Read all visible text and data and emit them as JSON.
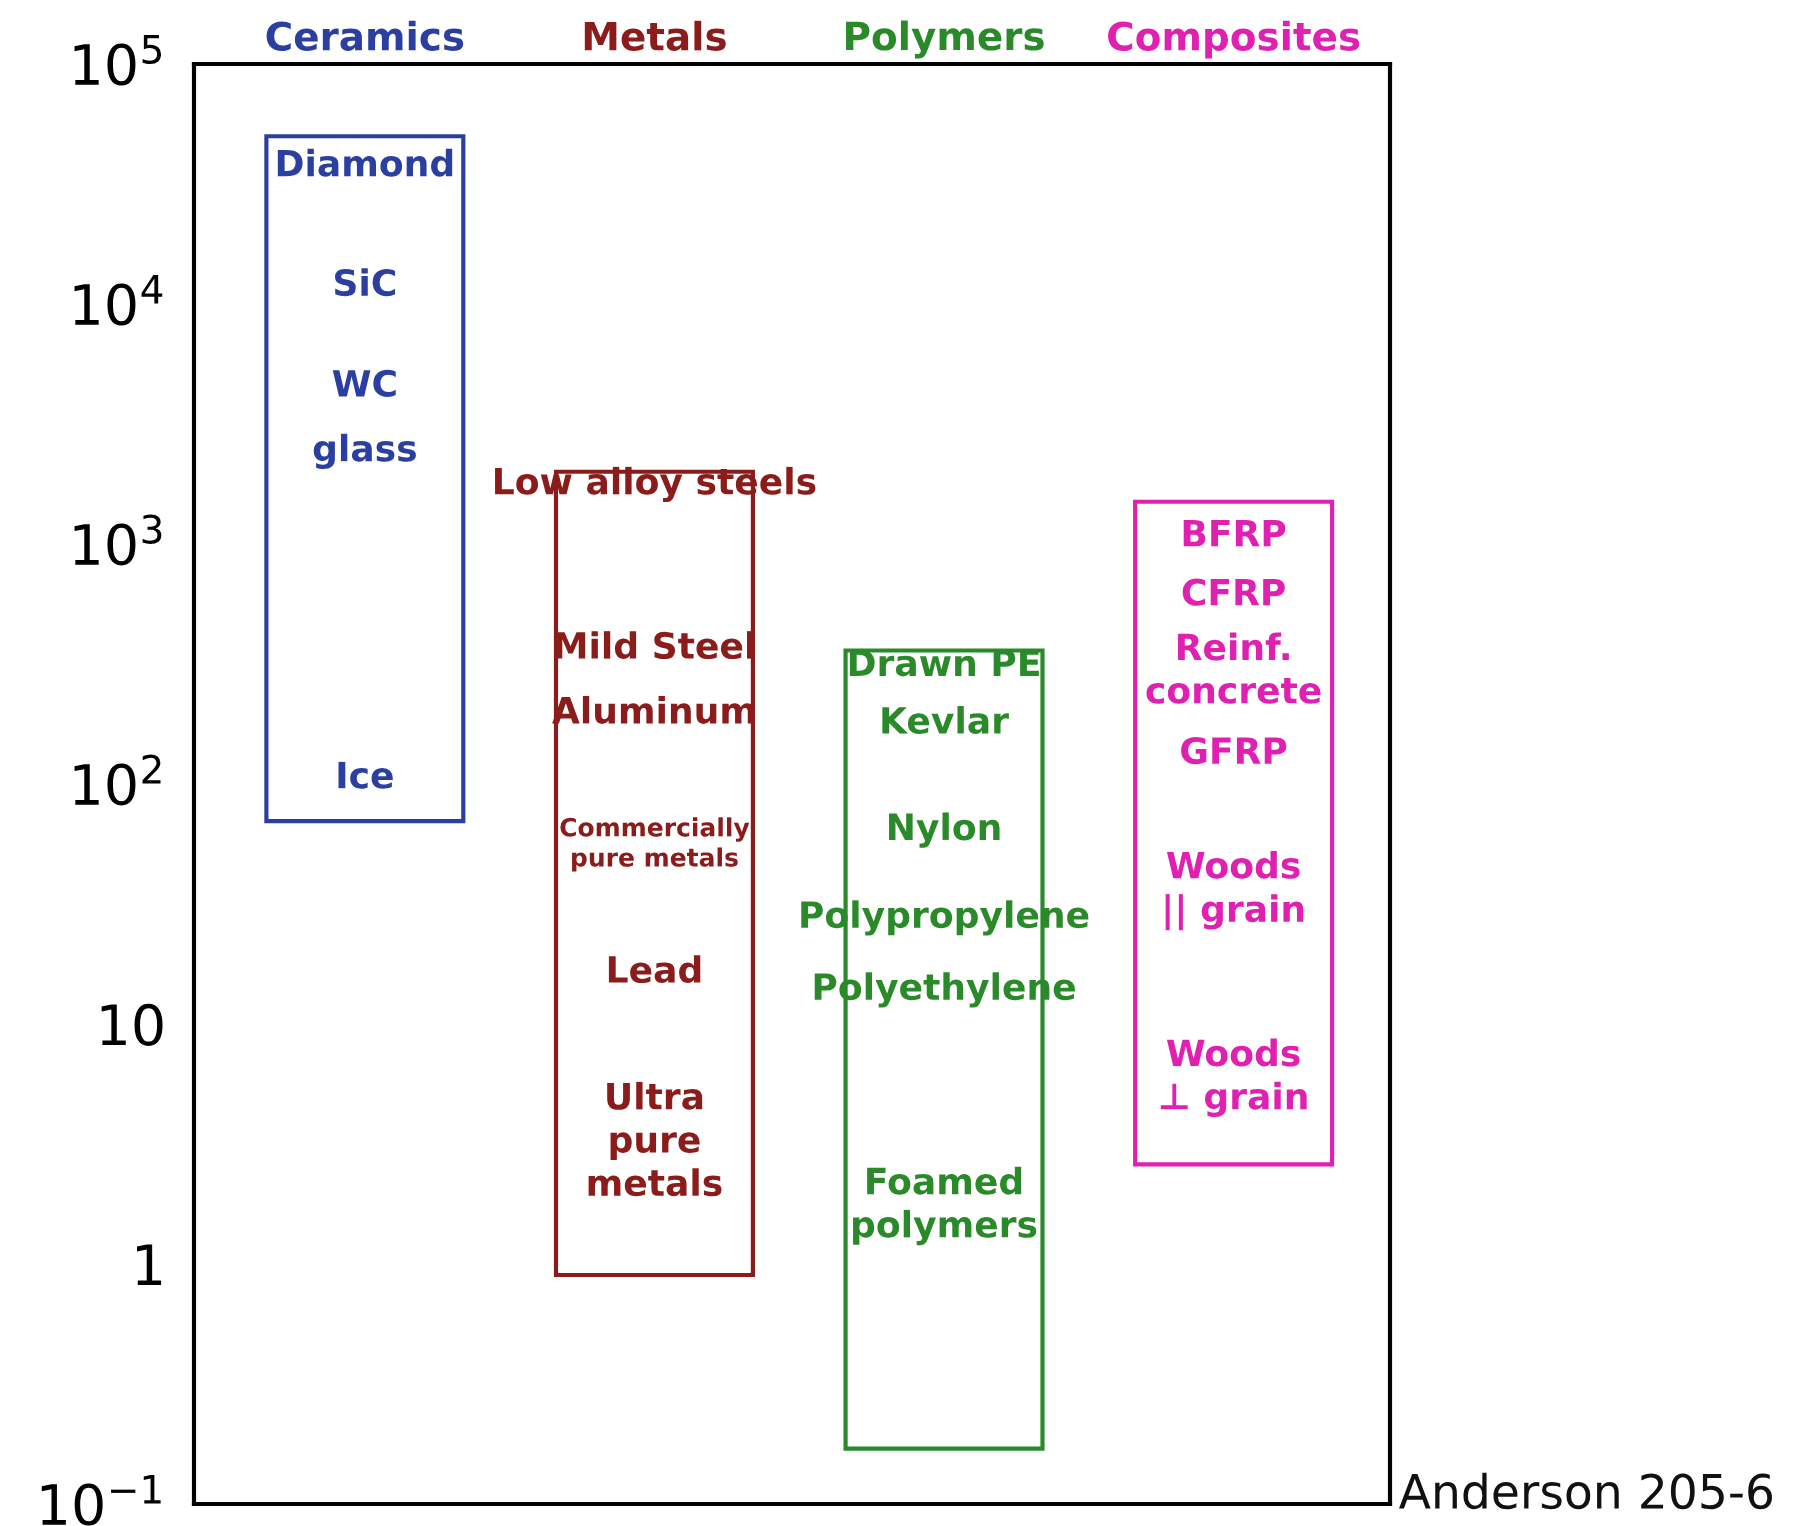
{
  "chart_data": {
    "type": "bar",
    "categories": [
      "Ceramics",
      "Metals",
      "Polymers",
      "Composites"
    ],
    "values": [
      49930,
      1999.1,
      359.83,
      1497.4
    ],
    "base": [
      70,
      0.9,
      0.17,
      2.6
    ],
    "colors": [
      "#2b3fa0",
      "#8b1c1c",
      "#2a8a2a",
      "#e020b0"
    ],
    "log": true,
    "ylim": [
      0.1,
      100000
    ],
    "yticks": [
      {
        "value": 0.1,
        "label": "10$^{−1}$"
      },
      {
        "value": 1,
        "label": "1"
      },
      {
        "value": 10,
        "label": "10"
      },
      {
        "value": 100,
        "label": "10$^{2}$"
      },
      {
        "value": 1000,
        "label": "10$^{3}$"
      },
      {
        "value": 10000,
        "label": "10$^{4}$"
      },
      {
        "value": 100000,
        "label": "10$^{5}$"
      }
    ],
    "grid": false,
    "annotations": [
      "Diamond",
      "SiC",
      "WC",
      "glass",
      "Ice",
      "Low alloy steels",
      "Mild Steel",
      "Aluminum",
      "Commercially\npure metals",
      "Lead",
      "Ultra\npure\nmetals",
      "Drawn PE",
      "Kevlar",
      "Nylon",
      "Polypropylene",
      "Polyethylene",
      "Foamed\npolymers",
      "BFRP",
      "CFRP",
      "Reinf.\nconcrete",
      "GFRP",
      "Woods\n|| grain",
      "Woods\n⊥ grain",
      "Anderson 205-6"
    ]
  }
}
